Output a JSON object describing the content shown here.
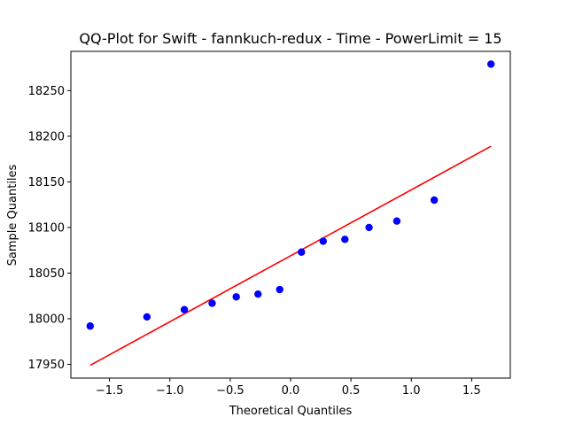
{
  "chart_data": {
    "type": "scatter",
    "title": "QQ-Plot for Swift - fannkuch-redux - Time - PowerLimit = 15",
    "xlabel": "Theoretical Quantiles",
    "ylabel": "Sample Quantiles",
    "xlim": [
      -1.82,
      1.82
    ],
    "ylim": [
      17935,
      18293
    ],
    "xticks": [
      -1.5,
      -1.0,
      -0.5,
      0.0,
      0.5,
      1.0,
      1.5
    ],
    "xtick_labels": [
      "−1.5",
      "−1.0",
      "−0.5",
      "0.0",
      "0.5",
      "1.0",
      "1.5"
    ],
    "yticks": [
      17950,
      18000,
      18050,
      18100,
      18150,
      18200,
      18250
    ],
    "ytick_labels": [
      "17950",
      "18000",
      "18050",
      "18100",
      "18150",
      "18200",
      "18250"
    ],
    "grid": false,
    "series": [
      {
        "kind": "points",
        "color": "#0000ff",
        "x": [
          -1.66,
          -1.19,
          -0.88,
          -0.65,
          -0.45,
          -0.27,
          -0.09,
          0.09,
          0.27,
          0.45,
          0.65,
          0.88,
          1.19,
          1.66
        ],
        "y": [
          17992,
          18002,
          18010,
          18017,
          18024,
          18027,
          18032,
          18073,
          18085,
          18087,
          18100,
          18107,
          18130,
          18279
        ]
      },
      {
        "kind": "line",
        "color": "#ff0000",
        "x": [
          -1.66,
          1.66
        ],
        "y": [
          17949,
          18189
        ]
      }
    ]
  }
}
